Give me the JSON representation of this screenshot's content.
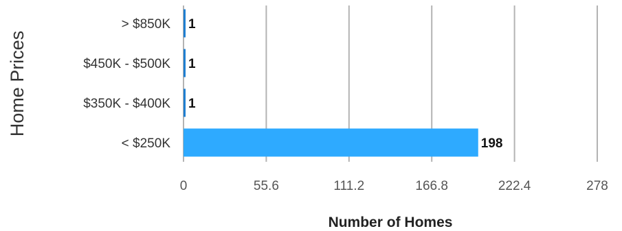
{
  "chart_data": {
    "type": "bar",
    "orientation": "horizontal",
    "categories": [
      "> $850K",
      "$450K - $500K",
      "$350K - $400K",
      "< $250K"
    ],
    "values": [
      1,
      1,
      1,
      198
    ],
    "data_labels": [
      "1",
      "1",
      "1",
      "198"
    ],
    "title": "",
    "xlabel": "Number of Homes",
    "ylabel": "Home Prices",
    "xlim": [
      0,
      278
    ],
    "x_ticks": [
      "0",
      "55.6",
      "111.2",
      "166.8",
      "222.4",
      "278"
    ],
    "grid": "vertical",
    "legend": "none",
    "bar_color": "#2eaaff",
    "small_bar_color": "#1f7fd1"
  }
}
